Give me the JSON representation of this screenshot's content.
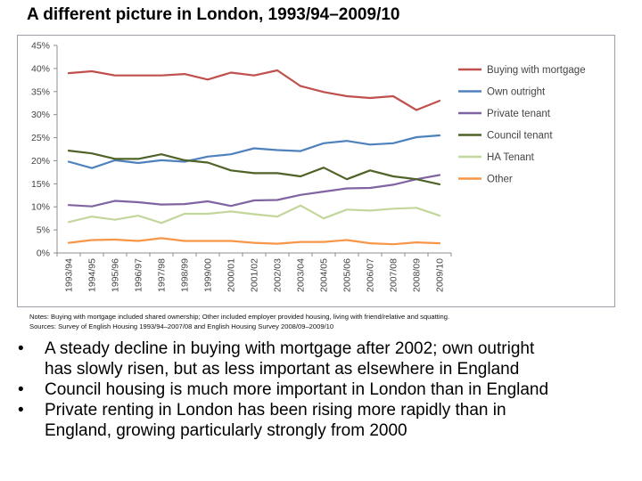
{
  "title": "A different picture in London, 1993/94–2009/10",
  "chart_data": {
    "type": "line",
    "categories": [
      "1993/94",
      "1994/95",
      "1995/96",
      "1996/97",
      "1997/98",
      "1998/99",
      "1999/00",
      "2000/01",
      "2001/02",
      "2002/03",
      "2003/04",
      "2004/05",
      "2005/06",
      "2006/07",
      "2007/08",
      "2008/09",
      "2009/10"
    ],
    "ylim": [
      0,
      45
    ],
    "yticks": [
      "0%",
      "5%",
      "10%",
      "15%",
      "20%",
      "25%",
      "30%",
      "35%",
      "40%",
      "45%"
    ],
    "grid": false,
    "legend_position": "right",
    "series": [
      {
        "name": "Buying with mortgage",
        "color": "#c0504d",
        "values": [
          39.0,
          39.4,
          38.5,
          38.5,
          38.5,
          38.8,
          37.6,
          39.1,
          38.5,
          39.6,
          36.2,
          34.9,
          34.0,
          33.6,
          34.0,
          31.0,
          33.0
        ]
      },
      {
        "name": "Own outright",
        "color": "#4f81bd",
        "values": [
          19.8,
          18.4,
          20.1,
          19.5,
          20.1,
          19.8,
          20.9,
          21.4,
          22.7,
          22.3,
          22.1,
          23.8,
          24.3,
          23.5,
          23.8,
          25.1,
          25.5
        ]
      },
      {
        "name": "Private tenant",
        "color": "#8064a2",
        "values": [
          10.4,
          10.1,
          11.3,
          11.0,
          10.5,
          10.6,
          11.2,
          10.2,
          11.4,
          11.5,
          12.6,
          13.3,
          14.0,
          14.1,
          14.8,
          16.0,
          16.9
        ]
      },
      {
        "name": "Council tenant",
        "color": "#4f6228",
        "values": [
          22.2,
          21.6,
          20.4,
          20.4,
          21.4,
          20.1,
          19.6,
          17.9,
          17.3,
          17.3,
          16.6,
          18.5,
          16.0,
          17.9,
          16.6,
          16.0,
          14.9
        ]
      },
      {
        "name": "HA Tenant",
        "color": "#c3d69b",
        "values": [
          6.7,
          7.9,
          7.2,
          8.1,
          6.5,
          8.5,
          8.5,
          9.0,
          8.4,
          7.9,
          10.3,
          7.5,
          9.4,
          9.2,
          9.6,
          9.8,
          8.1
        ]
      },
      {
        "name": "Other",
        "color": "#f79646",
        "values": [
          2.2,
          2.8,
          2.9,
          2.6,
          3.2,
          2.6,
          2.6,
          2.6,
          2.2,
          2.0,
          2.4,
          2.4,
          2.8,
          2.1,
          1.9,
          2.3,
          2.1
        ]
      }
    ]
  },
  "notes": {
    "line1": "Notes:  Buying with mortgage included shared ownership; Other included employer provided housing, living with friend/relative and squatting.",
    "line2": "Sources:  Survey of English Housing 1993/94–2007/08 and English Housing Survey 2008/09–2009/10"
  },
  "bullet_symbol": "•",
  "bullets": [
    {
      "line1": "A steady decline in buying with mortgage after 2002; own outright",
      "line2": "has slowly risen, but as less important as elsewhere in England"
    },
    {
      "line1": "Council housing is much more important in London than in England",
      "line2": ""
    },
    {
      "line1": "Private renting in London has been rising more rapidly than in",
      "line2": "England, growing particularly strongly from 2000"
    }
  ]
}
